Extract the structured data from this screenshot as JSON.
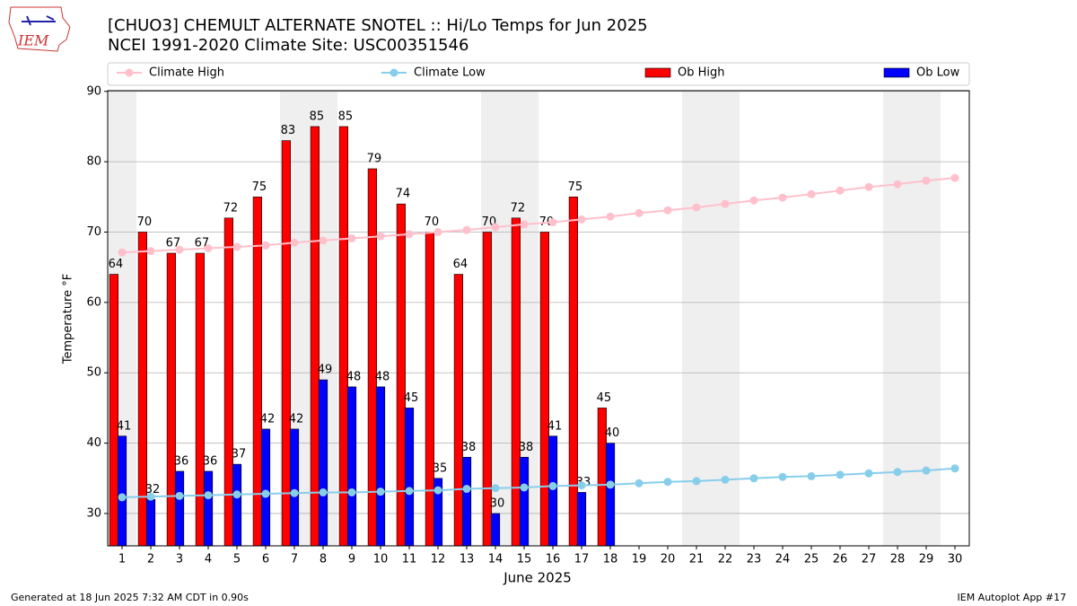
{
  "logo_text": "IEM",
  "footer_left": "Generated at 18 Jun 2025 7:32 AM CDT in 0.90s",
  "footer_right": "IEM Autoplot App #17",
  "chart_data": {
    "type": "bar",
    "title": "[CHUO3] CHEMULT ALTERNATE SNOTEL :: Hi/Lo Temps for Jun 2025",
    "subtitle": "NCEI 1991-2020 Climate Site: USC00351546",
    "x_label": "June 2025",
    "y_label": "Temperature °F",
    "x": [
      1,
      2,
      3,
      4,
      5,
      6,
      7,
      8,
      9,
      10,
      11,
      12,
      13,
      14,
      15,
      16,
      17,
      18,
      19,
      20,
      21,
      22,
      23,
      24,
      25,
      26,
      27,
      28,
      29,
      30
    ],
    "xlim": [
      0.5,
      30.5
    ],
    "xticks": [
      1,
      2,
      3,
      4,
      5,
      6,
      7,
      8,
      9,
      10,
      11,
      12,
      13,
      14,
      15,
      16,
      17,
      18,
      19,
      20,
      21,
      22,
      23,
      24,
      25,
      26,
      27,
      28,
      29,
      30
    ],
    "ylim": [
      25.4,
      90.1
    ],
    "yticks": [
      30,
      40,
      50,
      60,
      70,
      80,
      90
    ],
    "grid": true,
    "shaded_days": [
      1,
      7,
      8,
      14,
      15,
      21,
      22,
      28,
      29
    ],
    "shade_color": "#efefef",
    "series": [
      {
        "name": "Climate High",
        "type": "line",
        "color": "#ffc0cb",
        "values": [
          67.1,
          67.3,
          67.5,
          67.7,
          67.9,
          68.1,
          68.5,
          68.8,
          69.1,
          69.4,
          69.7,
          70.0,
          70.3,
          70.7,
          71.1,
          71.4,
          71.8,
          72.2,
          72.7,
          73.1,
          73.5,
          74.0,
          74.5,
          74.9,
          75.4,
          75.9,
          76.4,
          76.8,
          77.3,
          77.7
        ]
      },
      {
        "name": "Climate Low",
        "type": "line",
        "color": "#87ceeb",
        "values": [
          32.3,
          32.4,
          32.5,
          32.6,
          32.7,
          32.8,
          32.9,
          33.0,
          33.0,
          33.1,
          33.2,
          33.3,
          33.5,
          33.6,
          33.7,
          33.9,
          34.0,
          34.1,
          34.3,
          34.5,
          34.6,
          34.8,
          35.0,
          35.2,
          35.3,
          35.5,
          35.7,
          35.9,
          36.1,
          36.4
        ]
      },
      {
        "name": "Ob High",
        "type": "bar",
        "color": "#ff0000",
        "values": [
          64,
          70,
          67,
          67,
          72,
          75,
          83,
          85,
          85,
          79,
          74,
          70,
          64,
          70,
          72,
          70,
          75,
          45,
          null,
          null,
          null,
          null,
          null,
          null,
          null,
          null,
          null,
          null,
          null,
          null
        ]
      },
      {
        "name": "Ob Low",
        "type": "bar",
        "color": "#0000ff",
        "values": [
          41,
          32,
          36,
          36,
          37,
          42,
          42,
          49,
          48,
          48,
          45,
          35,
          38,
          30,
          38,
          41,
          33,
          40,
          null,
          null,
          null,
          null,
          null,
          null,
          null,
          null,
          null,
          null,
          null,
          null
        ]
      }
    ]
  }
}
